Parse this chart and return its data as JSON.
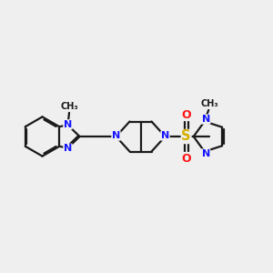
{
  "background_color": "#efefef",
  "bond_color": "#1a1a1a",
  "N_color": "#1414ff",
  "S_color": "#d4b000",
  "O_color": "#ff1414",
  "line_width": 1.6,
  "dbo": 0.045,
  "figsize": [
    3.0,
    3.0
  ],
  "dpi": 100,
  "xlim": [
    0,
    10
  ],
  "ylim": [
    2.5,
    7.5
  ]
}
